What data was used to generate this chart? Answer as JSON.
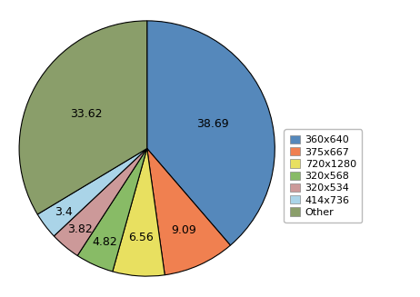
{
  "labels": [
    "360x640",
    "375x667",
    "720x1280",
    "320x568",
    "320x534",
    "414x736",
    "Other"
  ],
  "values": [
    38.69,
    9.09,
    6.56,
    4.82,
    3.82,
    3.4,
    33.62
  ],
  "colors": [
    "#5588bb",
    "#f08050",
    "#e8e060",
    "#88bb66",
    "#cc9999",
    "#aad4e8",
    "#8a9e6a"
  ],
  "startangle": 90,
  "legend_fontsize": 8,
  "label_fontsize": 9,
  "bg_color": "#ffffff"
}
